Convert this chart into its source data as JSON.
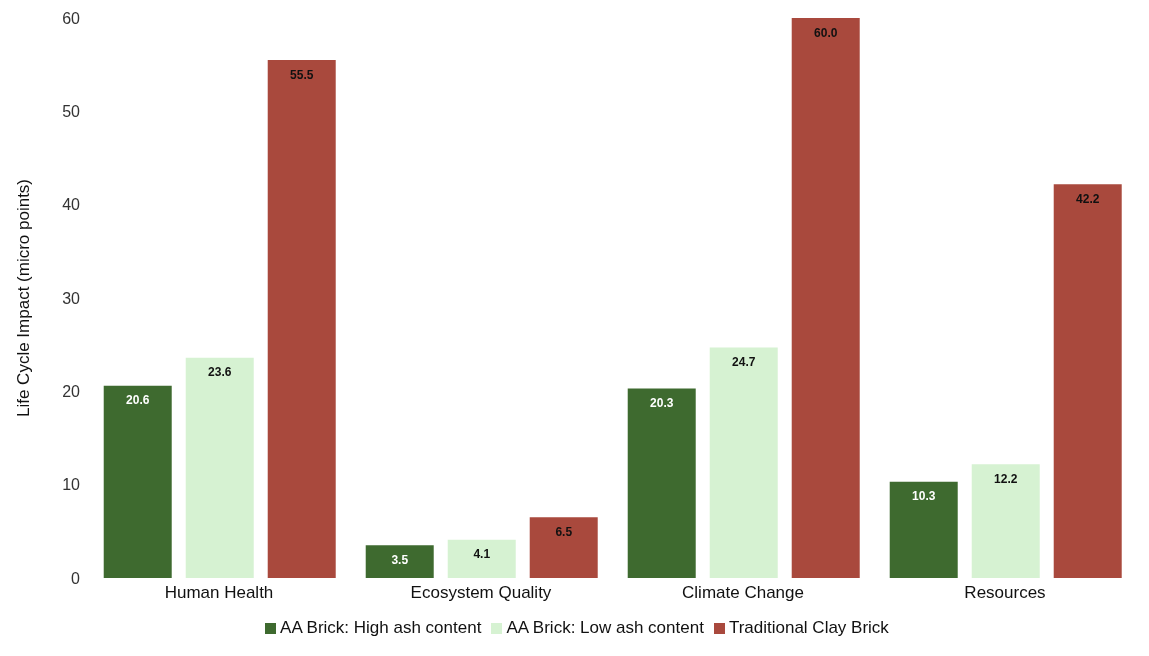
{
  "chart_data": {
    "type": "bar",
    "ylabel": "Life Cycle Impact (micro points)",
    "categories": [
      "Human Health",
      "Ecosystem Quality",
      "Climate Change",
      "Resources"
    ],
    "series": [
      {
        "name": "AA Brick: High ash content",
        "color": "#3e6a2f",
        "values": [
          20.6,
          3.5,
          20.3,
          10.3
        ],
        "value_labels": [
          "20.6",
          "3.5",
          "20.3",
          "10.3"
        ]
      },
      {
        "name": "AA Brick: Low ash content",
        "color": "#d6f2d2",
        "values": [
          23.6,
          4.1,
          24.7,
          12.2
        ],
        "value_labels": [
          "23.6",
          "4.1",
          "24.7",
          "12.2"
        ]
      },
      {
        "name": "Traditional Clay Brick",
        "color": "#a9493d",
        "values": [
          55.5,
          6.5,
          60.0,
          42.2
        ],
        "value_labels": [
          "55.5",
          "6.5",
          "60.0",
          "42.2"
        ]
      }
    ],
    "ylim": [
      0,
      60
    ],
    "yticks": [
      0,
      10,
      20,
      30,
      40,
      50,
      60
    ],
    "grid": false,
    "legend": "bottom"
  }
}
